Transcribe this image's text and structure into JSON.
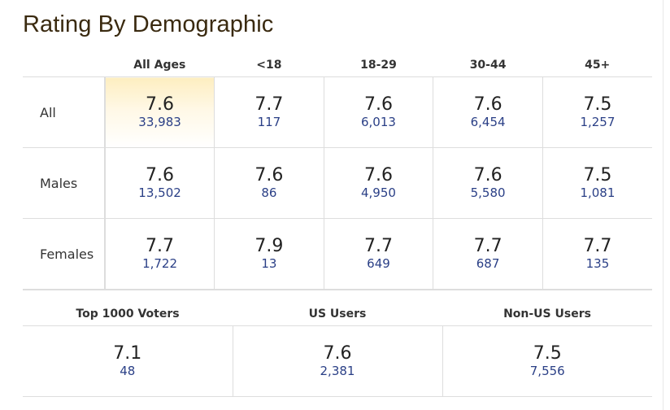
{
  "title": "Rating By Demographic",
  "age_columns": [
    "All Ages",
    "<18",
    "18-29",
    "30-44",
    "45+"
  ],
  "rows": [
    {
      "label": "All",
      "cells": [
        {
          "rating": "7.6",
          "votes": "33,983"
        },
        {
          "rating": "7.7",
          "votes": "117"
        },
        {
          "rating": "7.6",
          "votes": "6,013"
        },
        {
          "rating": "7.6",
          "votes": "6,454"
        },
        {
          "rating": "7.5",
          "votes": "1,257"
        }
      ]
    },
    {
      "label": "Males",
      "cells": [
        {
          "rating": "7.6",
          "votes": "13,502"
        },
        {
          "rating": "7.6",
          "votes": "86"
        },
        {
          "rating": "7.6",
          "votes": "4,950"
        },
        {
          "rating": "7.6",
          "votes": "5,580"
        },
        {
          "rating": "7.5",
          "votes": "1,081"
        }
      ]
    },
    {
      "label": "Females",
      "cells": [
        {
          "rating": "7.7",
          "votes": "1,722"
        },
        {
          "rating": "7.9",
          "votes": "13"
        },
        {
          "rating": "7.7",
          "votes": "649"
        },
        {
          "rating": "7.7",
          "votes": "687"
        },
        {
          "rating": "7.7",
          "votes": "135"
        }
      ]
    }
  ],
  "groups": [
    {
      "label": "Top 1000 Voters",
      "rating": "7.1",
      "votes": "48"
    },
    {
      "label": "US Users",
      "rating": "7.6",
      "votes": "2,381"
    },
    {
      "label": "Non-US Users",
      "rating": "7.5",
      "votes": "7,556"
    }
  ],
  "colors": {
    "title": "#3a2a10",
    "votes_link": "#2a3f86",
    "highlight": "#fdeec0",
    "border": "#dddddd"
  }
}
